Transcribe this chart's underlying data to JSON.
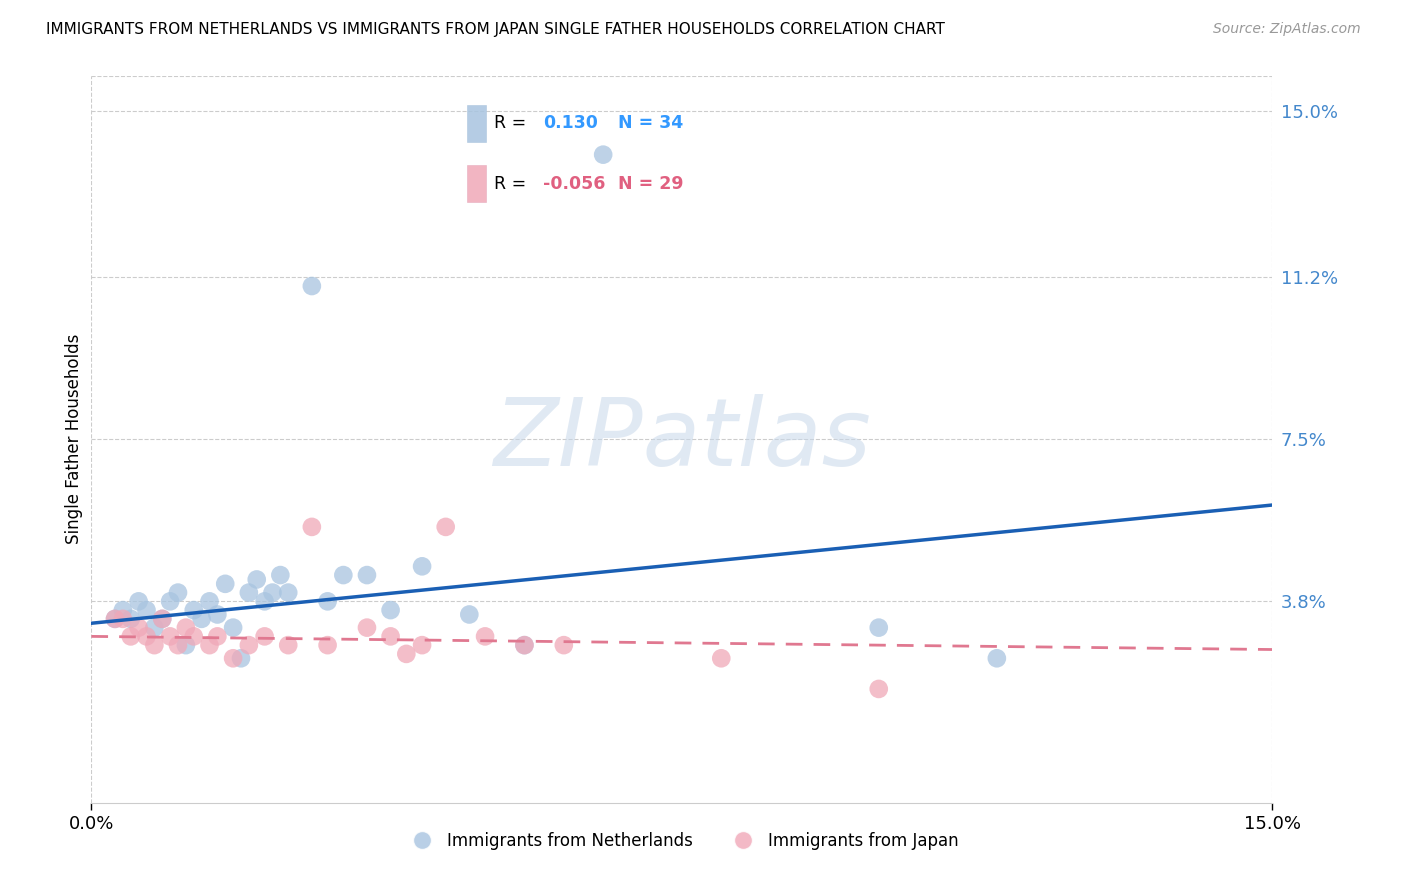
{
  "title": "IMMIGRANTS FROM NETHERLANDS VS IMMIGRANTS FROM JAPAN SINGLE FATHER HOUSEHOLDS CORRELATION CHART",
  "source": "Source: ZipAtlas.com",
  "ylabel": "Single Father Households",
  "yticks": [
    0.0,
    0.038,
    0.075,
    0.112,
    0.15
  ],
  "ytick_labels": [
    "",
    "3.8%",
    "7.5%",
    "11.2%",
    "15.0%"
  ],
  "xlim": [
    0.0,
    0.15
  ],
  "ylim": [
    -0.008,
    0.158
  ],
  "r_netherlands": "0.130",
  "n_netherlands": "34",
  "r_japan": "-0.056",
  "n_japan": "29",
  "netherlands_color": "#a8c4e0",
  "japan_color": "#f0a8b8",
  "netherlands_line_color": "#1a5fb4",
  "japan_line_color": "#e07890",
  "watermark_text": "ZIPatlas",
  "netherlands_x": [
    0.003,
    0.004,
    0.005,
    0.006,
    0.007,
    0.008,
    0.009,
    0.01,
    0.011,
    0.012,
    0.013,
    0.014,
    0.015,
    0.016,
    0.017,
    0.018,
    0.019,
    0.02,
    0.021,
    0.022,
    0.023,
    0.024,
    0.025,
    0.028,
    0.03,
    0.032,
    0.035,
    0.038,
    0.042,
    0.048,
    0.055,
    0.065,
    0.1,
    0.115
  ],
  "netherlands_y": [
    0.034,
    0.036,
    0.034,
    0.038,
    0.036,
    0.032,
    0.034,
    0.038,
    0.04,
    0.028,
    0.036,
    0.034,
    0.038,
    0.035,
    0.042,
    0.032,
    0.025,
    0.04,
    0.043,
    0.038,
    0.04,
    0.044,
    0.04,
    0.11,
    0.038,
    0.044,
    0.044,
    0.036,
    0.046,
    0.035,
    0.028,
    0.14,
    0.032,
    0.025
  ],
  "japan_x": [
    0.003,
    0.004,
    0.005,
    0.006,
    0.007,
    0.008,
    0.009,
    0.01,
    0.011,
    0.012,
    0.013,
    0.015,
    0.016,
    0.018,
    0.02,
    0.022,
    0.025,
    0.028,
    0.03,
    0.035,
    0.038,
    0.04,
    0.042,
    0.045,
    0.05,
    0.055,
    0.06,
    0.08,
    0.1
  ],
  "japan_y": [
    0.034,
    0.034,
    0.03,
    0.032,
    0.03,
    0.028,
    0.034,
    0.03,
    0.028,
    0.032,
    0.03,
    0.028,
    0.03,
    0.025,
    0.028,
    0.03,
    0.028,
    0.055,
    0.028,
    0.032,
    0.03,
    0.026,
    0.028,
    0.055,
    0.03,
    0.028,
    0.028,
    0.025,
    0.018
  ],
  "neth_line_x0": 0.0,
  "neth_line_x1": 0.15,
  "neth_line_y0": 0.033,
  "neth_line_y1": 0.06,
  "japan_line_x0": 0.0,
  "japan_line_x1": 0.15,
  "japan_line_y0": 0.03,
  "japan_line_y1": 0.027,
  "grid_color": "#cccccc",
  "tick_color": "#4488cc",
  "title_fontsize": 11,
  "source_fontsize": 10,
  "tick_fontsize": 13,
  "ylabel_fontsize": 12,
  "legend_r_color": "#3399ff",
  "legend_r_neg_color": "#e06080"
}
